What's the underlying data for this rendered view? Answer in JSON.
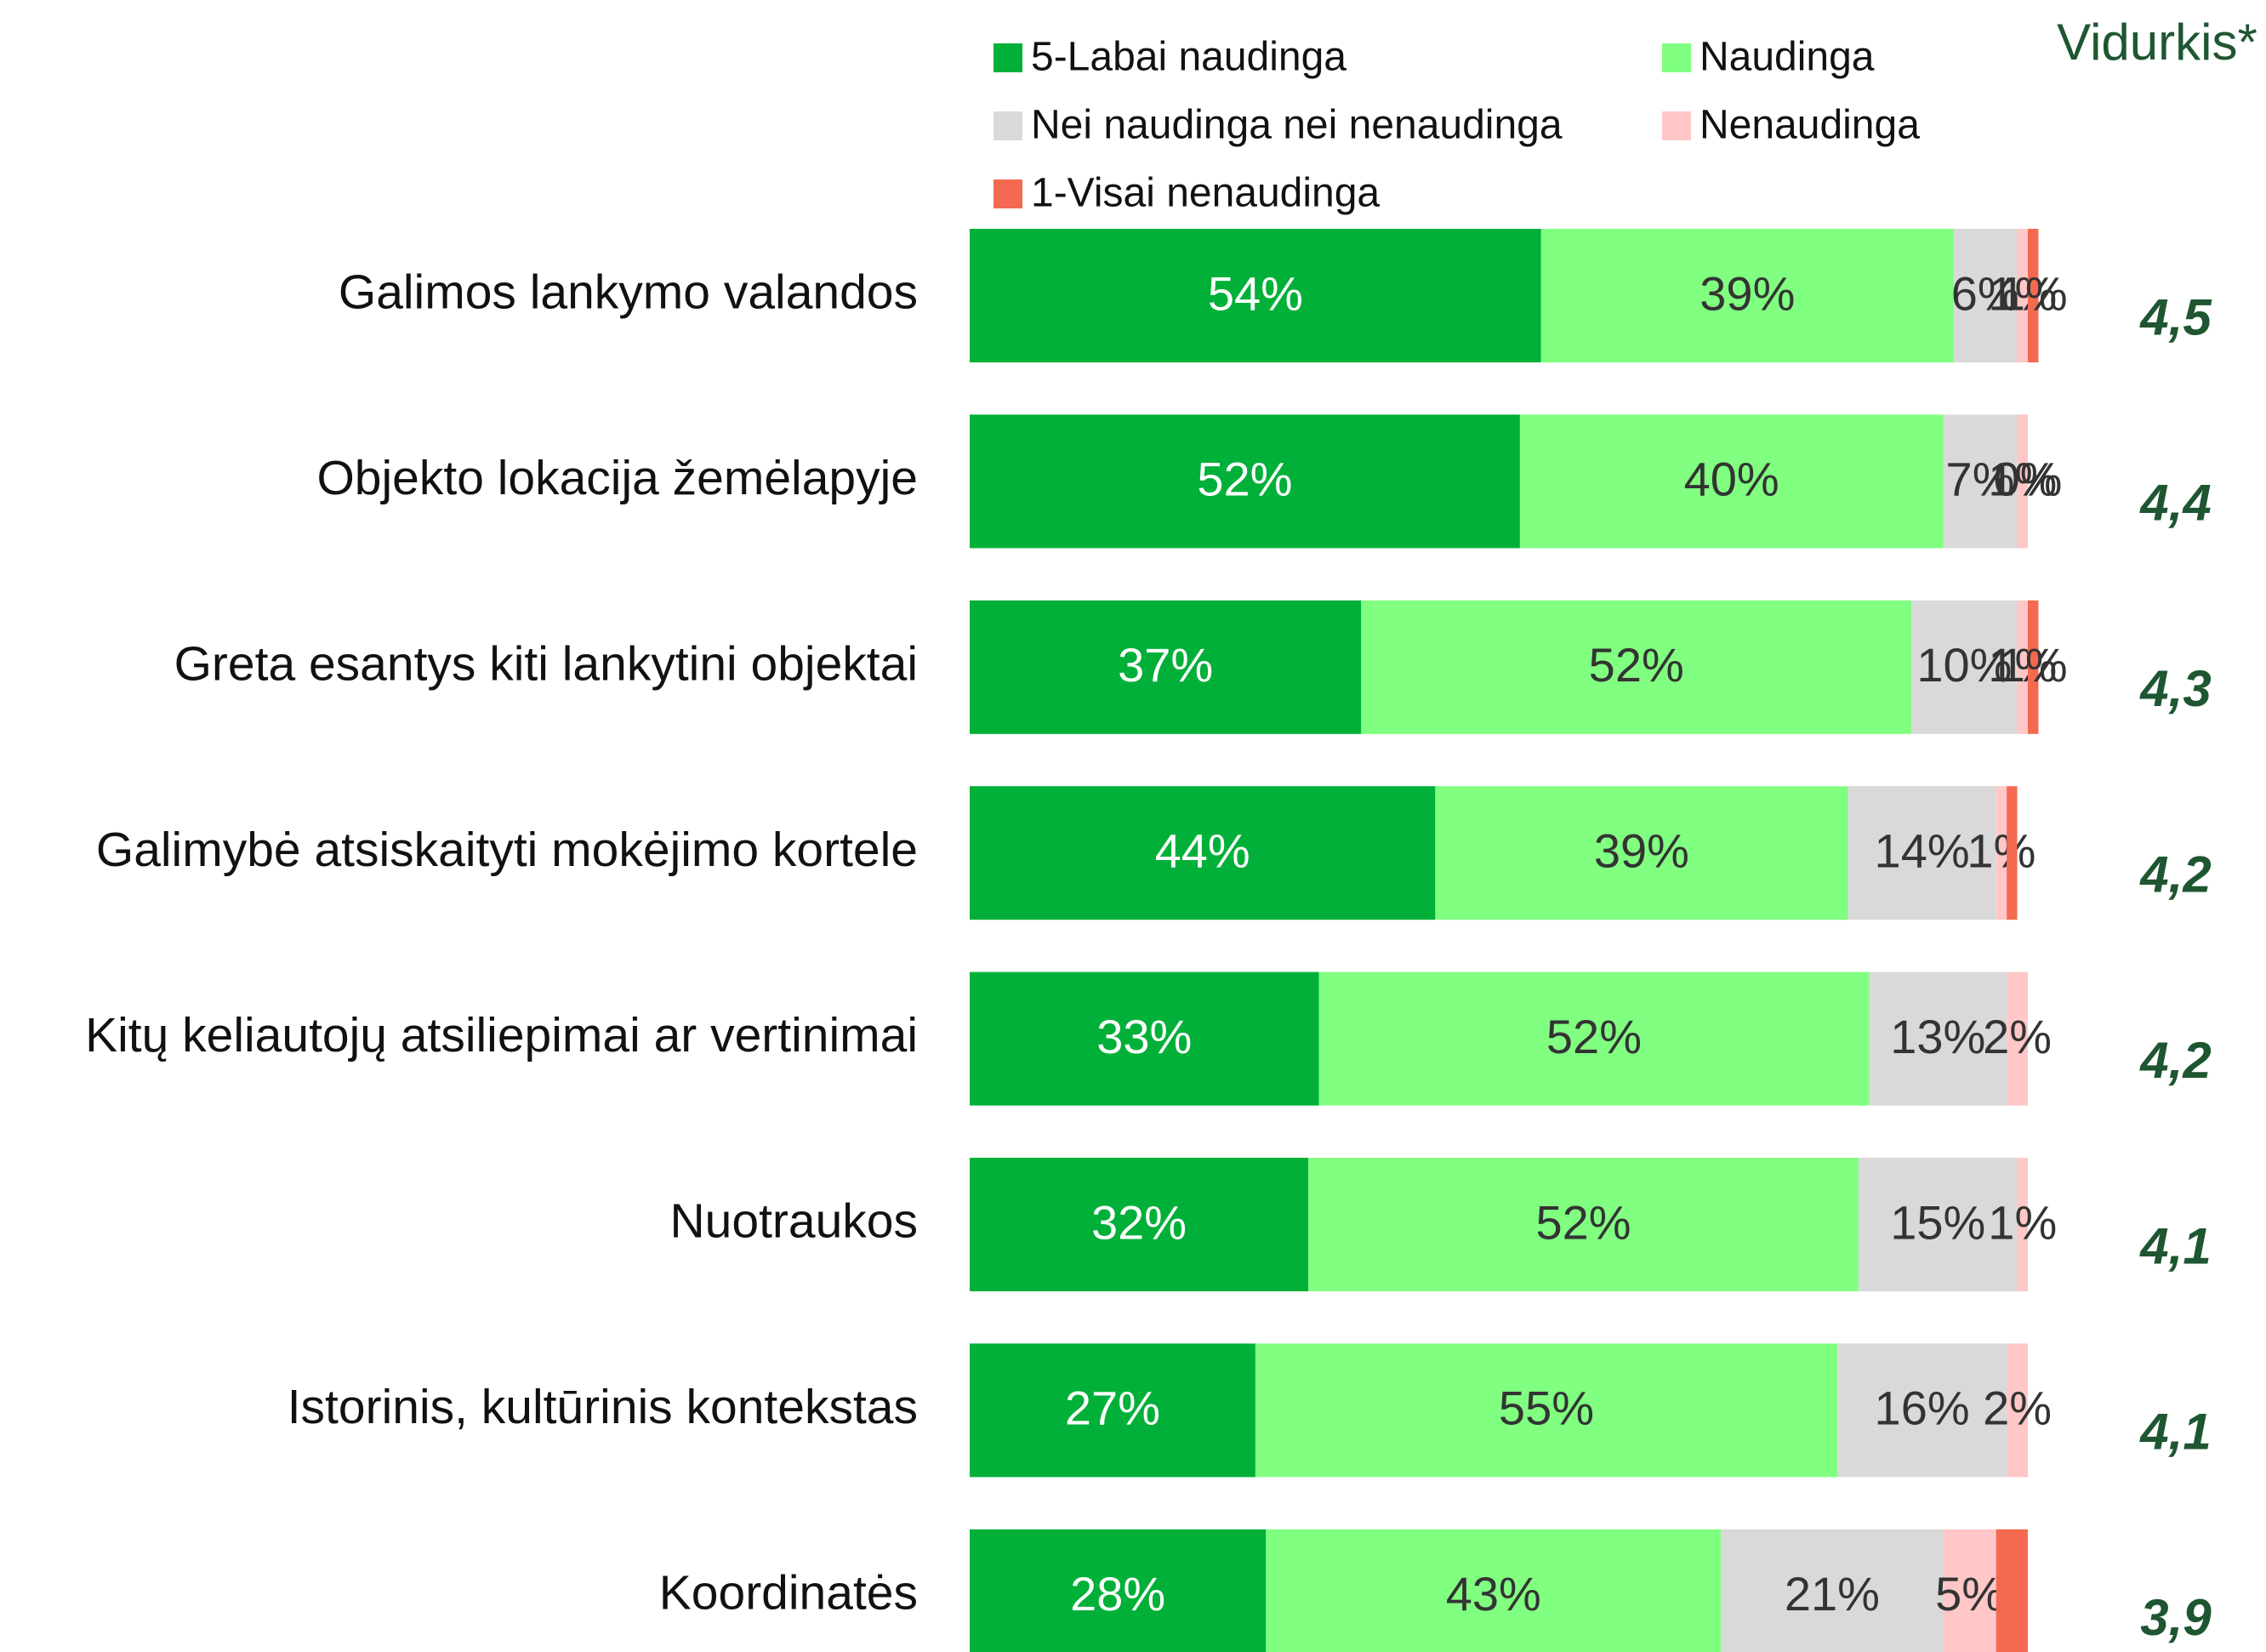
{
  "chart_data": {
    "type": "stacked-bar",
    "categories": [
      "Galimos lankymo valandos",
      "Objekto lokacija žemėlapyje",
      "Greta esantys kiti lankytini objektai",
      "Galimybė atsiskaityti mokėjimo kortele",
      "Kitų keliautojų atsiliepimai ar vertinimai",
      "Nuotraukos",
      "Istorinis, kultūrinis kontekstas",
      "Koordinatės"
    ],
    "xlim": [
      0,
      100
    ],
    "series": [
      {
        "name": "5-Labai naudinga",
        "color": "#00b038",
        "values": [
          54,
          52,
          37,
          44,
          33,
          32,
          27,
          28
        ],
        "value_labels": [
          "54%",
          "52%",
          "37%",
          "44%",
          "33%",
          "32%",
          "27%",
          "28%"
        ]
      },
      {
        "name": "Naudinga",
        "color": "#80ff80",
        "values": [
          39,
          40,
          52,
          39,
          52,
          52,
          55,
          43
        ],
        "value_labels": [
          "39%",
          "40%",
          "52%",
          "39%",
          "52%",
          "52%",
          "55%",
          "43%"
        ]
      },
      {
        "name": "Nei naudinga nei nenaudinga",
        "color": "#d9d9d9",
        "values": [
          6,
          7,
          10,
          14,
          13,
          15,
          16,
          21
        ],
        "value_labels": [
          "6%",
          "7%",
          "10%",
          "14%",
          "13%",
          "15%",
          "16%",
          "21%"
        ]
      },
      {
        "name": "Nenaudinga",
        "color": "#ffc7c7",
        "values": [
          1,
          1,
          1,
          1,
          2,
          1,
          2,
          5
        ],
        "value_labels": [
          "1%",
          "1%",
          "1%",
          "1%",
          "2%",
          "1%",
          "2%",
          "5%"
        ]
      },
      {
        "name": "1-Visai nenaudinga",
        "color": "#f36a50",
        "values": [
          1,
          0,
          1,
          1,
          0,
          0,
          0,
          3
        ],
        "value_labels": [
          "1%",
          "0%",
          "1%",
          null,
          null,
          null,
          null,
          null
        ]
      }
    ],
    "average": {
      "title": "Vidurkis*",
      "values": [
        4.5,
        4.4,
        4.3,
        4.2,
        4.2,
        4.1,
        4.1,
        3.9
      ],
      "value_labels": [
        "4,5",
        "4,4",
        "4,3",
        "4,2",
        "4,2",
        "4,1",
        "4,1",
        "3,9"
      ]
    }
  }
}
